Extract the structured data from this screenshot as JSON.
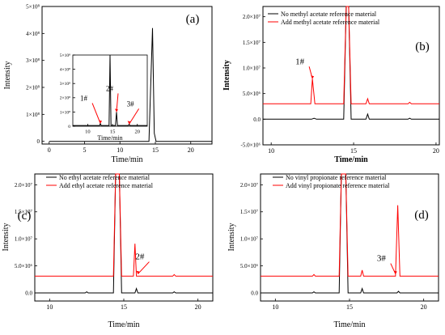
{
  "chart_data": [
    {
      "panel": "(a)",
      "type": "line",
      "xlabel": "Time/min",
      "ylabel": "Intensity",
      "xlim": [
        -1,
        23
      ],
      "ylim": [
        -10000000.0,
        500000000.0
      ],
      "xticks": [
        0,
        5,
        10,
        15,
        20
      ],
      "xtick_labels": [
        "0",
        "5",
        "10",
        "15",
        "20"
      ],
      "yticks": [
        0,
        100000000.0,
        200000000.0,
        300000000.0,
        400000000.0,
        500000000.0
      ],
      "ytick_labels": [
        "0",
        "1×10⁸",
        "2×10⁸",
        "3×10⁸",
        "4×10⁸",
        "5×10⁸"
      ],
      "series": [
        {
          "color": "#000000",
          "x": [
            0,
            13,
            14.1,
            14.6,
            14.85,
            15.1,
            15.3,
            17,
            23
          ],
          "y": [
            0,
            0,
            0,
            420000000.0,
            30000000.0,
            0,
            0,
            0,
            0
          ]
        }
      ],
      "inset": {
        "xlabel": "Time/min",
        "xlim": [
          7,
          22
        ],
        "ylim": [
          0,
          500000000.0
        ],
        "xticks": [
          10,
          15,
          20
        ],
        "xtick_labels": [
          "10",
          "15",
          "20"
        ],
        "yticks": [
          0,
          100000000.0,
          200000000.0,
          300000000.0,
          400000000.0,
          500000000.0
        ],
        "ytick_labels": [
          "0",
          "1×10⁸",
          "2×10⁸",
          "3×10⁸",
          "4×10⁸",
          "5×10⁸"
        ],
        "series": [
          {
            "color": "#000000",
            "x": [
              7,
              12.4,
              12.55,
              12.7,
              14.3,
              14.5,
              14.7,
              15.6,
              15.8,
              16.0,
              18.2,
              18.35,
              18.5,
              22
            ],
            "y": [
              5000000.0,
              5000000.0,
              20000000.0,
              5000000.0,
              5000000.0,
              500000000.0,
              5000000.0,
              5000000.0,
              100000000.0,
              5000000.0,
              5000000.0,
              15000000.0,
              5000000.0,
              5000000.0
            ]
          }
        ],
        "annotations": [
          {
            "text": "1#",
            "x": 12.55,
            "y": 20000000.0
          },
          {
            "text": "2#",
            "x": 15.8,
            "y": 100000000.0
          },
          {
            "text": "3#",
            "x": 18.35,
            "y": 15000000.0
          }
        ]
      }
    },
    {
      "panel": "(b)",
      "type": "line",
      "xlabel": "Time/min",
      "ylabel": "Intensity",
      "xlim": [
        9.5,
        20.2
      ],
      "ylim": [
        -5000000.0,
        22000000.0
      ],
      "xticks": [
        10,
        15,
        20
      ],
      "xtick_labels": [
        "10",
        "15",
        "20"
      ],
      "yticks": [
        -5000000.0,
        0,
        5000000.0,
        10000000.0,
        15000000.0,
        20000000.0
      ],
      "ytick_labels": [
        "-5.0×10⁶",
        "0.0",
        "5.0×10⁶",
        "1.0×10⁷",
        "1.5×10⁷",
        "2.0×10⁷"
      ],
      "legend": "top-left",
      "series": [
        {
          "name": "No methyl acetate reference material",
          "color": "#000000",
          "x": [
            9.5,
            12.45,
            12.6,
            12.75,
            14.4,
            14.55,
            14.7,
            14.85,
            15.75,
            15.85,
            15.95,
            18.3,
            18.4,
            18.5,
            20.2
          ],
          "y": [
            0,
            0,
            200000.0,
            0,
            0,
            23000000.0,
            23000000.0,
            0,
            0,
            1000000.0,
            0,
            0,
            200000.0,
            0,
            0
          ]
        },
        {
          "name": "Add methyl acetate reference material",
          "color": "#ff0000",
          "x": [
            9.5,
            12.4,
            12.5,
            12.65,
            12.8,
            14.4,
            14.55,
            14.7,
            14.85,
            15.75,
            15.85,
            15.95,
            18.3,
            18.4,
            18.5,
            20.2
          ],
          "y": [
            3000000.0,
            3000000.0,
            7900000.0,
            3000000.0,
            3000000.0,
            3000000.0,
            23000000.0,
            23000000.0,
            3000000.0,
            3000000.0,
            4000000.0,
            3000000.0,
            3000000.0,
            3300000.0,
            3000000.0,
            3000000.0
          ]
        }
      ],
      "annotations": [
        {
          "text": "1#",
          "x": 12.5,
          "y": 7900000.0
        }
      ]
    },
    {
      "panel": "(c)",
      "type": "line",
      "xlabel": "Time/min",
      "ylabel": "Intensity",
      "xlim": [
        9,
        21
      ],
      "ylim": [
        -1500000.0,
        22000000.0
      ],
      "xticks": [
        10,
        15,
        20
      ],
      "xtick_labels": [
        "10",
        "15",
        "20"
      ],
      "yticks": [
        0,
        5000000.0,
        10000000.0,
        15000000.0,
        20000000.0
      ],
      "ytick_labels": [
        "0.0",
        "5.0×10⁶",
        "1.0×10⁷",
        "1.5×10⁷",
        "2.0×10⁷"
      ],
      "legend": "top-left",
      "series": [
        {
          "name": "No ethyl acetate reference material",
          "color": "#000000",
          "x": [
            9,
            12.4,
            12.5,
            12.6,
            14.3,
            14.45,
            14.7,
            14.85,
            15.75,
            15.85,
            15.95,
            18.3,
            18.4,
            18.5,
            21
          ],
          "y": [
            0,
            0,
            200000.0,
            0,
            0,
            23000000.0,
            23000000.0,
            0,
            0,
            800000.0,
            0,
            0,
            200000.0,
            0,
            0
          ]
        },
        {
          "name": "Add ethyl acetate reference material",
          "color": "#ff0000",
          "x": [
            9,
            14.3,
            14.45,
            14.7,
            14.85,
            15.65,
            15.75,
            15.85,
            18.3,
            18.4,
            18.5,
            21
          ],
          "y": [
            3100000.0,
            3100000.0,
            23000000.0,
            23000000.0,
            3100000.0,
            3100000.0,
            9100000.0,
            3100000.0,
            3100000.0,
            3400000.0,
            3100000.0,
            3100000.0
          ]
        }
      ],
      "annotations": [
        {
          "text": "2#",
          "x": 15.95,
          "y": 3500000.0
        }
      ]
    },
    {
      "panel": "(d)",
      "type": "line",
      "xlabel": "Time/min",
      "ylabel": "Intensity",
      "xlim": [
        9,
        21
      ],
      "ylim": [
        -1500000.0,
        22000000.0
      ],
      "xticks": [
        10,
        15,
        20
      ],
      "xtick_labels": [
        "10",
        "15",
        "20"
      ],
      "yticks": [
        0,
        5000000.0,
        10000000.0,
        15000000.0,
        20000000.0
      ],
      "ytick_labels": [
        "0.0",
        "5.0×10⁶",
        "1.0×10⁷",
        "1.5×10⁷",
        "2.0×10⁷"
      ],
      "legend": "top-left",
      "series": [
        {
          "name": "No vinyl propionate reference material",
          "color": "#000000",
          "x": [
            9,
            12.5,
            12.6,
            12.7,
            14.3,
            14.45,
            14.75,
            14.9,
            15.75,
            15.85,
            15.95,
            18.2,
            18.3,
            18.4,
            21
          ],
          "y": [
            0,
            0,
            200000.0,
            0,
            0,
            23000000.0,
            23000000.0,
            0,
            0,
            800000.0,
            0,
            0,
            300000.0,
            0,
            0
          ]
        },
        {
          "name": "Add vinyl propionate reference material",
          "color": "#ff0000",
          "x": [
            9,
            12.5,
            12.6,
            12.7,
            14.3,
            14.45,
            14.75,
            14.9,
            15.75,
            15.85,
            15.95,
            18.1,
            18.25,
            18.4,
            21
          ],
          "y": [
            3100000.0,
            3100000.0,
            3400000.0,
            3100000.0,
            3100000.0,
            23000000.0,
            23000000.0,
            3100000.0,
            3100000.0,
            4200000.0,
            3100000.0,
            3100000.0,
            16200000.0,
            3100000.0,
            3100000.0
          ]
        }
      ],
      "annotations": [
        {
          "text": "3#",
          "x": 18.1,
          "y": 3500000.0
        }
      ]
    }
  ]
}
